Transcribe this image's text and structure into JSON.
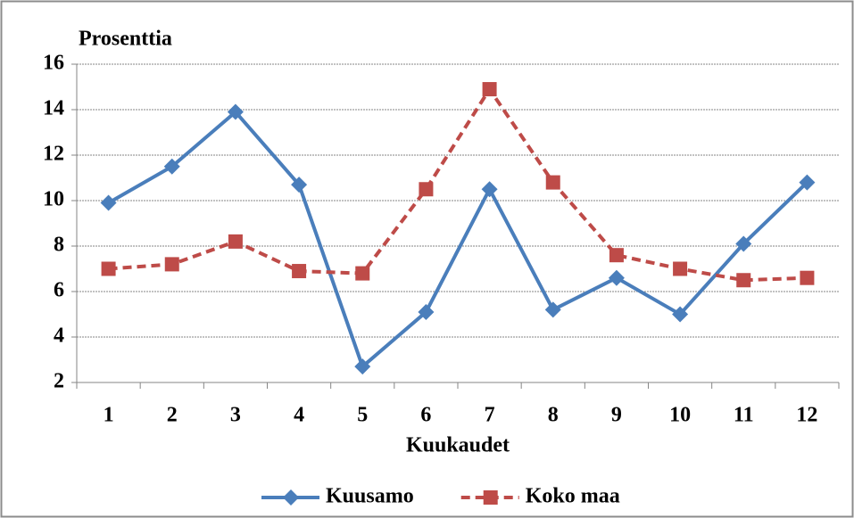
{
  "chart_data": {
    "type": "line",
    "y_axis_label": "Prosenttia",
    "x_axis_label": "Kuukaudet",
    "categories": [
      "1",
      "2",
      "3",
      "4",
      "5",
      "6",
      "7",
      "8",
      "9",
      "10",
      "11",
      "12"
    ],
    "series": [
      {
        "name": "Kuusamo",
        "color": "#4a7ebb",
        "line_style": "solid",
        "marker": "diamond",
        "values": [
          9.9,
          11.5,
          13.9,
          10.7,
          2.7,
          5.1,
          10.5,
          5.2,
          6.6,
          5.0,
          8.1,
          10.8
        ]
      },
      {
        "name": "Koko maa",
        "color": "#be4b48",
        "line_style": "dashed",
        "marker": "square",
        "values": [
          7.0,
          7.2,
          8.2,
          6.9,
          6.8,
          10.5,
          14.9,
          10.8,
          7.6,
          7.0,
          6.5,
          6.6
        ]
      }
    ],
    "ylim": [
      2,
      16
    ],
    "yticks": [
      2,
      4,
      6,
      8,
      10,
      12,
      14,
      16
    ],
    "grid": true,
    "legend": "bottom"
  }
}
